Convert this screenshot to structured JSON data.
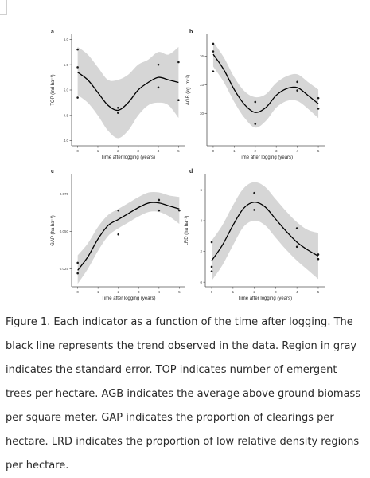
{
  "chart_data": [
    {
      "type": "scatter",
      "panel_label": "a",
      "title": "",
      "xlabel": "Time after logging (years)",
      "ylabel": "TOP (ind ha⁻¹)",
      "xlim": [
        -0.3,
        5.3
      ],
      "ylim": [
        3.9,
        6.1
      ],
      "x_ticks": [
        "0",
        "1",
        "2",
        "3",
        "4",
        "5"
      ],
      "y_ticks": [
        "4.0",
        "4.5",
        "5.0",
        "5.5",
        "6.0"
      ],
      "points": [
        {
          "x": 0,
          "y": 5.8
        },
        {
          "x": 0,
          "y": 5.45
        },
        {
          "x": 0,
          "y": 4.85
        },
        {
          "x": 2,
          "y": 4.65
        },
        {
          "x": 2,
          "y": 4.55
        },
        {
          "x": 4,
          "y": 5.5
        },
        {
          "x": 4,
          "y": 5.05
        },
        {
          "x": 5,
          "y": 5.55
        },
        {
          "x": 5,
          "y": 4.8
        }
      ],
      "trend": {
        "x": [
          0,
          0.5,
          1,
          1.5,
          2,
          2.5,
          3,
          3.5,
          4,
          4.5,
          5
        ],
        "y": [
          5.35,
          5.2,
          4.95,
          4.7,
          4.6,
          4.75,
          5.0,
          5.15,
          5.25,
          5.2,
          5.15
        ]
      },
      "se_band": {
        "lower": [
          4.9,
          4.75,
          4.5,
          4.2,
          4.05,
          4.2,
          4.5,
          4.7,
          4.75,
          4.7,
          4.45
        ],
        "upper": [
          5.85,
          5.7,
          5.45,
          5.2,
          5.2,
          5.3,
          5.5,
          5.6,
          5.75,
          5.7,
          5.85
        ]
      }
    },
    {
      "type": "scatter",
      "panel_label": "b",
      "title": "",
      "xlabel": "Time after logging (years)",
      "ylabel": "AGB (kg .m⁻²)",
      "xlim": [
        -0.3,
        5.3
      ],
      "ylim": [
        26.6,
        38.3
      ],
      "x_ticks": [
        "0",
        "1",
        "2",
        "3",
        "4",
        "5"
      ],
      "y_ticks": [
        "30",
        "33",
        "36"
      ],
      "points": [
        {
          "x": 0,
          "y": 37.3
        },
        {
          "x": 0,
          "y": 36.5
        },
        {
          "x": 0,
          "y": 34.4
        },
        {
          "x": 2,
          "y": 31.2
        },
        {
          "x": 2,
          "y": 28.9
        },
        {
          "x": 4,
          "y": 33.3
        },
        {
          "x": 4,
          "y": 32.4
        },
        {
          "x": 5,
          "y": 31.6
        },
        {
          "x": 5,
          "y": 30.5
        }
      ],
      "trend": {
        "x": [
          0,
          0.5,
          1,
          1.5,
          2,
          2.5,
          3,
          3.5,
          4,
          4.5,
          5
        ],
        "y": [
          36.2,
          34.6,
          32.5,
          30.9,
          30.1,
          30.6,
          31.9,
          32.6,
          32.7,
          31.9,
          31.0
        ]
      },
      "se_band": {
        "lower": [
          34.9,
          33.3,
          31.2,
          29.5,
          28.5,
          29.2,
          30.6,
          31.3,
          31.3,
          30.5,
          29.5
        ],
        "upper": [
          37.5,
          35.9,
          33.8,
          32.3,
          31.7,
          32.0,
          33.2,
          33.9,
          34.1,
          33.3,
          32.5
        ]
      }
    },
    {
      "type": "scatter",
      "panel_label": "c",
      "title": "",
      "xlabel": "Time after logging (years)",
      "ylabel": "GAP (ha ha⁻¹)",
      "xlim": [
        -0.3,
        5.3
      ],
      "ylim": [
        0.013,
        0.088
      ],
      "x_ticks": [
        "0",
        "1",
        "2",
        "3",
        "4",
        "5"
      ],
      "y_ticks": [
        "0.025",
        "0.050",
        "0.075"
      ],
      "points": [
        {
          "x": 0,
          "y": 0.029
        },
        {
          "x": 0,
          "y": 0.022
        },
        {
          "x": 2,
          "y": 0.064
        },
        {
          "x": 2,
          "y": 0.048
        },
        {
          "x": 4,
          "y": 0.071
        },
        {
          "x": 4,
          "y": 0.064
        },
        {
          "x": 5,
          "y": 0.064
        }
      ],
      "trend": {
        "x": [
          0,
          0.5,
          1,
          1.5,
          2,
          2.5,
          3,
          3.5,
          4,
          4.5,
          5
        ],
        "y": [
          0.024,
          0.033,
          0.045,
          0.054,
          0.058,
          0.062,
          0.066,
          0.069,
          0.069,
          0.067,
          0.065
        ]
      },
      "se_band": {
        "lower": [
          0.015,
          0.025,
          0.037,
          0.047,
          0.052,
          0.056,
          0.06,
          0.063,
          0.063,
          0.06,
          0.055
        ],
        "upper": [
          0.034,
          0.042,
          0.053,
          0.061,
          0.065,
          0.069,
          0.073,
          0.076,
          0.076,
          0.074,
          0.073
        ]
      }
    },
    {
      "type": "scatter",
      "panel_label": "d",
      "title": "",
      "xlabel": "Time after logging (years)",
      "ylabel": "LRD (ha ha⁻¹)",
      "xlim": [
        -0.3,
        5.3
      ],
      "ylim": [
        -0.3,
        7.0
      ],
      "x_ticks": [
        "0",
        "1",
        "2",
        "3",
        "4",
        "5"
      ],
      "y_ticks": [
        "0",
        "2",
        "4",
        "6"
      ],
      "points": [
        {
          "x": 0,
          "y": 2.6
        },
        {
          "x": 0,
          "y": 1.0
        },
        {
          "x": 0,
          "y": 0.7
        },
        {
          "x": 2,
          "y": 5.8
        },
        {
          "x": 2,
          "y": 4.7
        },
        {
          "x": 4,
          "y": 3.5
        },
        {
          "x": 4,
          "y": 2.3
        },
        {
          "x": 5,
          "y": 1.8
        },
        {
          "x": 5,
          "y": 1.5
        }
      ],
      "trend": {
        "x": [
          0,
          0.5,
          1,
          1.5,
          2,
          2.5,
          3,
          3.5,
          4,
          4.5,
          5
        ],
        "y": [
          1.4,
          2.4,
          3.7,
          4.8,
          5.2,
          4.9,
          4.1,
          3.3,
          2.6,
          2.1,
          1.7
        ]
      },
      "se_band": {
        "lower": [
          0.1,
          1.1,
          2.4,
          3.6,
          4.0,
          3.7,
          2.9,
          2.1,
          1.4,
          0.8,
          0.2
        ],
        "upper": [
          2.7,
          3.7,
          5.0,
          6.1,
          6.5,
          6.2,
          5.4,
          4.6,
          3.9,
          3.4,
          3.2
        ]
      }
    }
  ],
  "caption": {
    "text": "Figure 1. Each indicator as a function of the time after logging. The black line represents the trend observed in the data. Region in gray indicates the standard error. TOP indicates number of emergent trees per hectare. AGB indicates the average above ground biomass per square meter. GAP indicates the proportion of clearings per hectare. LRD indicates the proportion of low relative density regions per hectare."
  },
  "colors": {
    "band": "#d6d6d6",
    "trend": "#000000",
    "point": "#1a1a1a",
    "axis": "#555555",
    "tick_label": "#444444"
  }
}
